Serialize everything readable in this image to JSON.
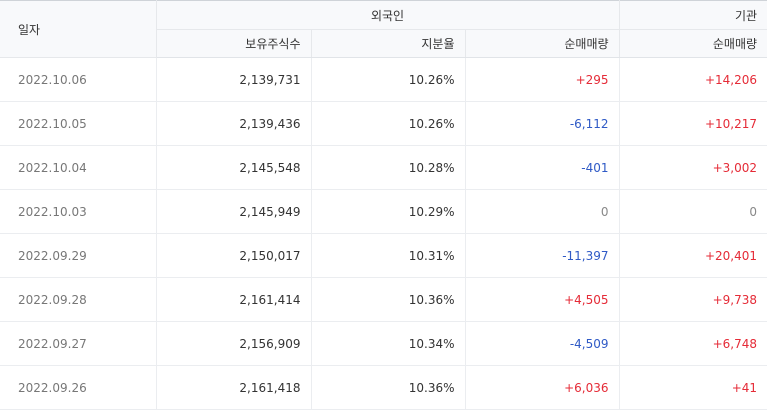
{
  "colors": {
    "up": "#e52b37",
    "down": "#2f5ac6",
    "flat": "#888888"
  },
  "header": {
    "date": "일자",
    "foreign": "외국인",
    "institution": "기관",
    "holdings": "보유주식수",
    "ratio": "지분율",
    "foreign_net": "순매매량",
    "institution_net": "순매매량"
  },
  "rows": [
    {
      "date": "2022.10.06",
      "holdings": "2,139,731",
      "ratio": "10.26%",
      "foreign_net": "+295",
      "institution_net": "+14,206"
    },
    {
      "date": "2022.10.05",
      "holdings": "2,139,436",
      "ratio": "10.26%",
      "foreign_net": "-6,112",
      "institution_net": "+10,217"
    },
    {
      "date": "2022.10.04",
      "holdings": "2,145,548",
      "ratio": "10.28%",
      "foreign_net": "-401",
      "institution_net": "+3,002"
    },
    {
      "date": "2022.10.03",
      "holdings": "2,145,949",
      "ratio": "10.29%",
      "foreign_net": "0",
      "institution_net": "0"
    },
    {
      "date": "2022.09.29",
      "holdings": "2,150,017",
      "ratio": "10.31%",
      "foreign_net": "-11,397",
      "institution_net": "+20,401"
    },
    {
      "date": "2022.09.28",
      "holdings": "2,161,414",
      "ratio": "10.36%",
      "foreign_net": "+4,505",
      "institution_net": "+9,738"
    },
    {
      "date": "2022.09.27",
      "holdings": "2,156,909",
      "ratio": "10.34%",
      "foreign_net": "-4,509",
      "institution_net": "+6,748"
    },
    {
      "date": "2022.09.26",
      "holdings": "2,161,418",
      "ratio": "10.36%",
      "foreign_net": "+6,036",
      "institution_net": "+41"
    }
  ]
}
